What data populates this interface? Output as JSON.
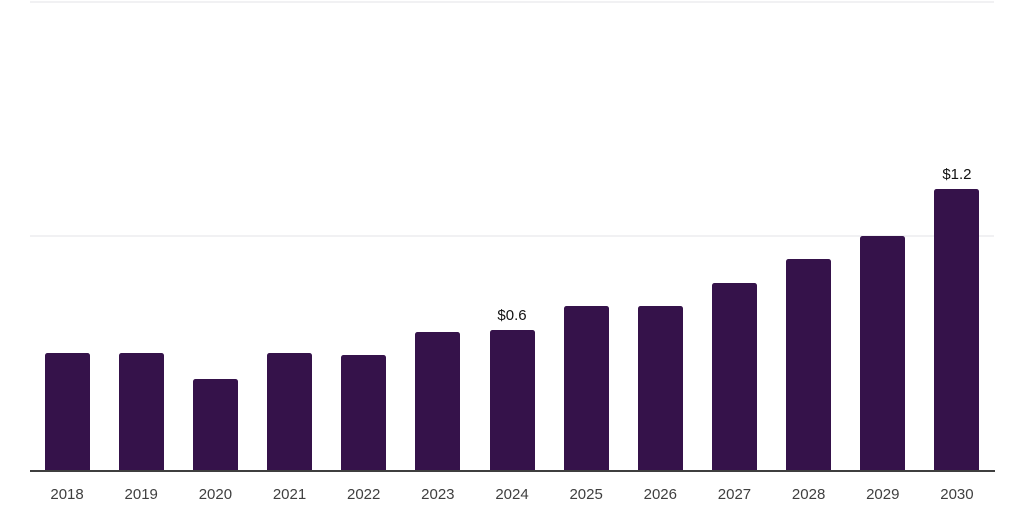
{
  "chart_data": {
    "type": "bar",
    "title": "",
    "xlabel": "",
    "ylabel": "",
    "categories": [
      "2018",
      "2019",
      "2020",
      "2021",
      "2022",
      "2023",
      "2024",
      "2025",
      "2026",
      "2027",
      "2028",
      "2029",
      "2030"
    ],
    "values": [
      0.5,
      0.5,
      0.39,
      0.5,
      0.49,
      0.59,
      0.6,
      0.7,
      0.7,
      0.8,
      0.9,
      1.0,
      1.2
    ],
    "value_labels": [
      "",
      "",
      "",
      "",
      "",
      "",
      "$0.6",
      "",
      "",
      "",
      "",
      "",
      "$1.2"
    ],
    "ylim": [
      0,
      2
    ],
    "y_gridlines": [
      1,
      2
    ],
    "grid": "horizontal",
    "y_axis_tick_labels": "none",
    "legend_position": "none",
    "colors": {
      "bar": "#35124a",
      "axis_line": "#3f3f3f",
      "gridline": "#f1f1f3",
      "value_label_text": "#111111",
      "tick_label_text": "#3f3f3f",
      "background": "#ffffff"
    }
  }
}
